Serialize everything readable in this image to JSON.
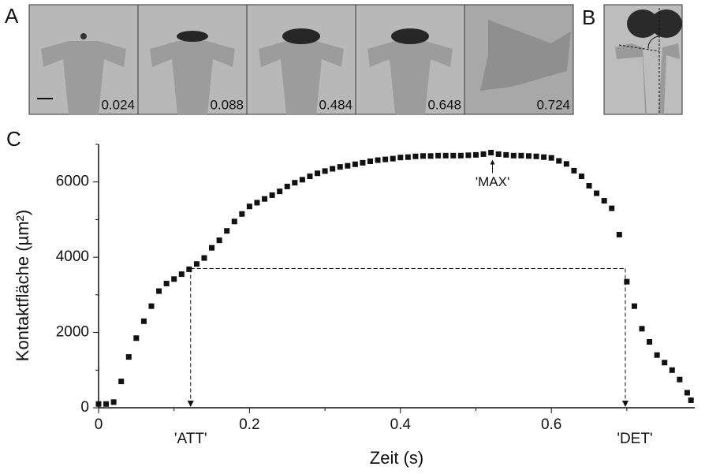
{
  "panel_labels": [
    "A",
    "B",
    "C"
  ],
  "images": {
    "times": [
      "0.024",
      "0.088",
      "0.484",
      "0.648",
      "0.724"
    ]
  },
  "chart_data": {
    "type": "scatter",
    "x_label": "Zeit (s)",
    "y_label": "Kontaktfläche (µm²)",
    "x": [
      0,
      0.01,
      0.02,
      0.03,
      0.04,
      0.05,
      0.06,
      0.07,
      0.08,
      0.09,
      0.1,
      0.11,
      0.12,
      0.13,
      0.14,
      0.15,
      0.16,
      0.17,
      0.18,
      0.19,
      0.2,
      0.21,
      0.22,
      0.23,
      0.24,
      0.25,
      0.26,
      0.27,
      0.28,
      0.29,
      0.3,
      0.31,
      0.32,
      0.33,
      0.34,
      0.35,
      0.36,
      0.37,
      0.38,
      0.39,
      0.4,
      0.41,
      0.42,
      0.43,
      0.44,
      0.45,
      0.46,
      0.47,
      0.48,
      0.49,
      0.5,
      0.51,
      0.52,
      0.53,
      0.54,
      0.55,
      0.56,
      0.57,
      0.58,
      0.59,
      0.6,
      0.61,
      0.62,
      0.63,
      0.64,
      0.65,
      0.66,
      0.67,
      0.68,
      0.69,
      0.7,
      0.71,
      0.72,
      0.73,
      0.74,
      0.75,
      0.76,
      0.77,
      0.78,
      0.785
    ],
    "values": [
      100,
      100,
      150,
      700,
      1350,
      1850,
      2300,
      2700,
      3100,
      3300,
      3420,
      3550,
      3680,
      3820,
      3980,
      4250,
      4450,
      4700,
      4950,
      5150,
      5350,
      5450,
      5550,
      5650,
      5750,
      5880,
      5980,
      6060,
      6150,
      6230,
      6290,
      6350,
      6400,
      6430,
      6470,
      6510,
      6550,
      6580,
      6600,
      6620,
      6650,
      6660,
      6680,
      6690,
      6690,
      6700,
      6700,
      6700,
      6700,
      6710,
      6720,
      6740,
      6780,
      6740,
      6720,
      6700,
      6700,
      6690,
      6680,
      6660,
      6640,
      6560,
      6480,
      6300,
      6150,
      5900,
      5700,
      5500,
      5300,
      4600,
      3350,
      2700,
      2100,
      1750,
      1400,
      1200,
      1000,
      750,
      400,
      200
    ],
    "color": "#111111",
    "xlim": [
      0,
      0.79
    ],
    "ylim": [
      0,
      7000
    ],
    "xticks": [
      0,
      0.2,
      0.4,
      0.6
    ],
    "xminorticks": [
      0.1,
      0.3,
      0.5,
      0.7
    ],
    "yticks": [
      0,
      2000,
      4000,
      6000
    ],
    "yminorticks": [
      1000,
      3000,
      5000,
      7000
    ],
    "annotations": [
      {
        "label": "'ATT'",
        "x": 0.122,
        "y": 3700
      },
      {
        "label": "'DET'",
        "x": 0.698,
        "y": 3700
      },
      {
        "label": "'MAX'",
        "x": 0.522,
        "y": 6780
      }
    ]
  }
}
